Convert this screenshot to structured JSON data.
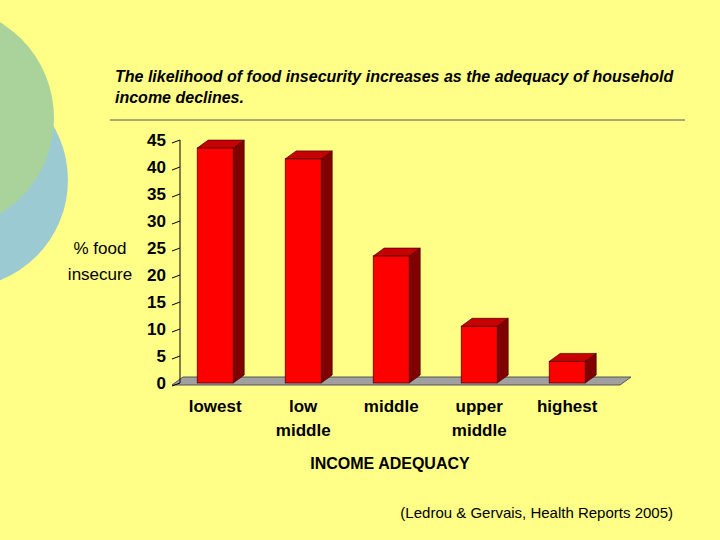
{
  "chart_data": {
    "type": "bar",
    "title": "The likelihood of food insecurity increases as the adequacy of household income declines.",
    "x_label": "INCOME ADEQUACY",
    "y_label": "% food insecure",
    "annotation": "(Ledrou & Gervais, Health Reports 2005)",
    "categories": [
      "lowest",
      "low middle",
      "middle",
      "upper middle",
      "highest"
    ],
    "values": [
      43.5,
      41.5,
      23.5,
      10.5,
      4
    ],
    "color": "#ff0000",
    "ylim": [
      0,
      45
    ],
    "yticks": [
      0,
      5,
      10,
      15,
      20,
      25,
      30,
      35,
      40,
      45
    ],
    "grid": false
  }
}
